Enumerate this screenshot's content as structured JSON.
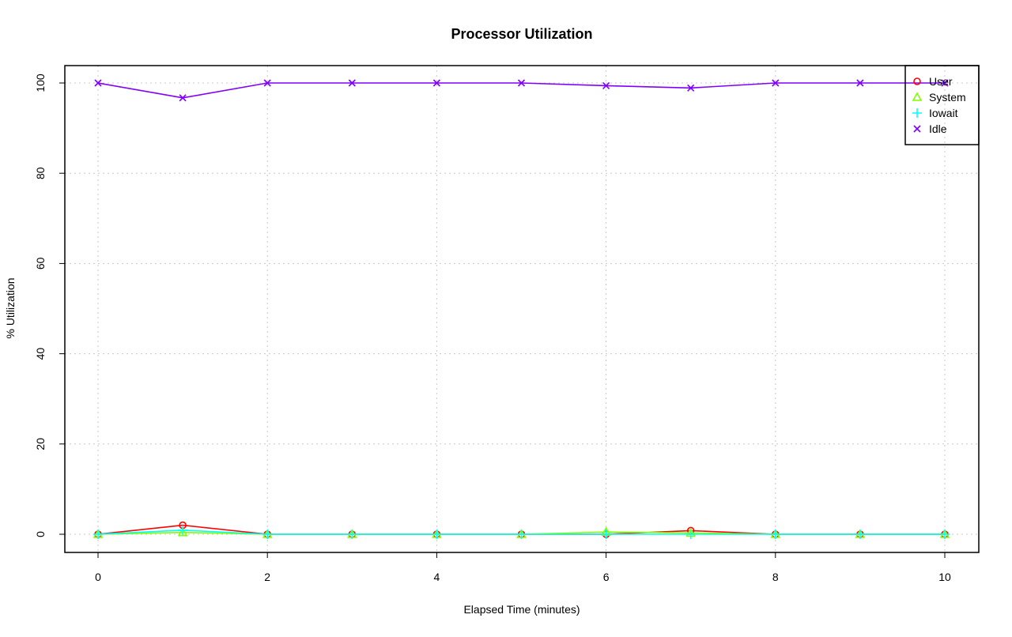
{
  "chart_data": {
    "type": "line",
    "title": "Processor Utilization",
    "xlabel": "Elapsed Time (minutes)",
    "ylabel": "% Utilization",
    "x": [
      0,
      1,
      2,
      3,
      4,
      5,
      6,
      7,
      8,
      9,
      10
    ],
    "xlim": [
      -0.4,
      10.4
    ],
    "ylim": [
      -4,
      104
    ],
    "xticks": [
      0,
      2,
      4,
      6,
      8,
      10
    ],
    "yticks": [
      0,
      20,
      40,
      60,
      80,
      100
    ],
    "grid": true,
    "legend_position": "top-right",
    "series": [
      {
        "name": "User",
        "color": "#ff0000",
        "marker": "circle",
        "values": [
          0,
          2.0,
          0,
          0,
          0,
          0,
          0,
          0.8,
          0,
          0,
          0
        ]
      },
      {
        "name": "System",
        "color": "#80ff00",
        "marker": "triangle",
        "values": [
          0,
          0.4,
          0,
          0,
          0,
          0,
          0.5,
          0.3,
          0,
          0,
          0
        ]
      },
      {
        "name": "Iowait",
        "color": "#00ffff",
        "marker": "plus",
        "values": [
          0,
          0.9,
          0,
          0,
          0,
          0,
          0,
          0,
          0,
          0,
          0
        ]
      },
      {
        "name": "Idle",
        "color": "#8000ff",
        "marker": "cross",
        "values": [
          100,
          96.7,
          100,
          100,
          100,
          100,
          99.4,
          98.9,
          100,
          100,
          100
        ]
      }
    ]
  }
}
